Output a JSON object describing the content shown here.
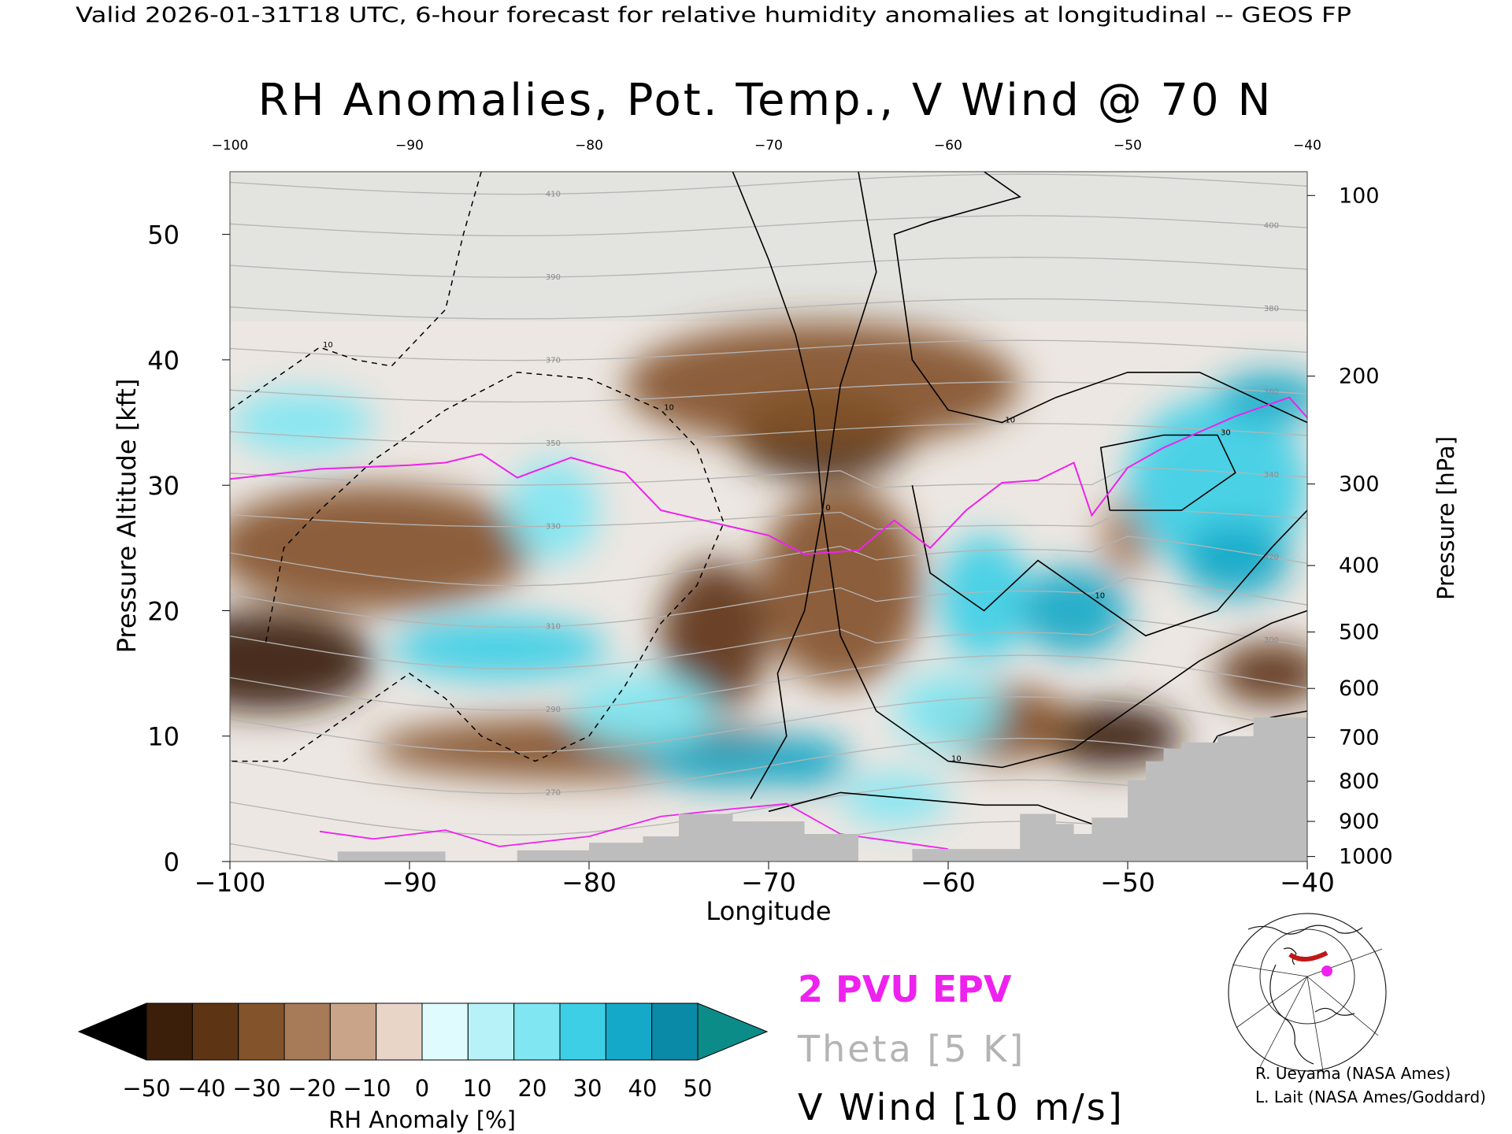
{
  "header": {
    "valid_line": "Valid 2026-01-31T18 UTC, 6-hour forecast for relative humidity anomalies at longitudinal -- GEOS FP",
    "title": "RH Anomalies, Pot. Temp., V Wind @ 70 N"
  },
  "credits": {
    "line1": "R. Ueyama (NASA Ames)",
    "line2": "L. Lait (NASA Ames/Goddard)"
  },
  "legend_text": {
    "epv": "2 PVU EPV",
    "theta": "Theta [5 K]",
    "vwind": "V Wind [10 m/s]"
  },
  "colors": {
    "epv": "#ee22ee",
    "theta": "#b4b4b4",
    "vwind": "#000000",
    "terrain": "#bdbdbd"
  },
  "chart_data": {
    "type": "heatmap",
    "title": "RH Anomalies, Pot. Temp., V Wind @ 70 N",
    "xlabel": "Longitude",
    "ylabel_left": "Pressure Altitude [kft]",
    "ylabel_right": "Pressure [hPa]",
    "xlim": [
      -100,
      -40
    ],
    "ylim": [
      0,
      55
    ],
    "x_ticks": [
      -100,
      -90,
      -80,
      -70,
      -60,
      -50,
      -40
    ],
    "x_tick_labels": [
      "−100",
      "−90",
      "−80",
      "−70",
      "−60",
      "−50",
      "−40"
    ],
    "top_tick_labels": [
      "−100",
      "−90",
      "−80",
      "−70",
      "−60",
      "−50",
      "−40"
    ],
    "y_ticks": [
      0,
      10,
      20,
      30,
      40,
      50
    ],
    "y_tick_labels": [
      "0",
      "10",
      "20",
      "30",
      "40",
      "50"
    ],
    "pressure_ticks": [
      {
        "hPa": "100",
        "kft": 53.1
      },
      {
        "hPa": "200",
        "kft": 38.7
      },
      {
        "hPa": "300",
        "kft": 30.1
      },
      {
        "hPa": "400",
        "kft": 23.6
      },
      {
        "hPa": "500",
        "kft": 18.3
      },
      {
        "hPa": "600",
        "kft": 13.8
      },
      {
        "hPa": "700",
        "kft": 9.9
      },
      {
        "hPa": "800",
        "kft": 6.4
      },
      {
        "hPa": "900",
        "kft": 3.2
      },
      {
        "hPa": "1000",
        "kft": 0.4
      }
    ],
    "colorbar": {
      "label": "RH Anomaly [%]",
      "ticks": [
        "−50",
        "−40",
        "−30",
        "−20",
        "−10",
        "0",
        "10",
        "20",
        "30",
        "40",
        "50"
      ],
      "colors": [
        "#3b1f0a",
        "#5e3514",
        "#83532b",
        "#a77a58",
        "#c9a489",
        "#e9d5c8",
        "#dffbfd",
        "#b6f2f8",
        "#7fe6f2",
        "#3ccfe6",
        "#14a9c8",
        "#0b8aa8"
      ],
      "under_color": "#000000",
      "over_color": "#0c8c88"
    },
    "rh_anomaly_blobs": [
      {
        "x": -67,
        "z": 34,
        "rx": 5,
        "rz": 3.5,
        "value": -45
      },
      {
        "x": -67,
        "z": 38,
        "rx": 11,
        "rz": 5,
        "value": -25
      },
      {
        "x": -66,
        "z": 22,
        "rx": 4.5,
        "rz": 8,
        "value": -30
      },
      {
        "x": -98,
        "z": 16,
        "rx": 6,
        "rz": 4,
        "value": -45
      },
      {
        "x": -92,
        "z": 25,
        "rx": 9,
        "rz": 5,
        "value": -25
      },
      {
        "x": -80,
        "z": 9,
        "rx": 12,
        "rz": 2.5,
        "value": -30
      },
      {
        "x": -73,
        "z": 18,
        "rx": 3,
        "rz": 6,
        "value": -35
      },
      {
        "x": -51,
        "z": 10,
        "rx": 4,
        "rz": 2.5,
        "value": -48
      },
      {
        "x": -57,
        "z": 11,
        "rx": 4,
        "rz": 3,
        "value": -30
      },
      {
        "x": -42,
        "z": 15,
        "rx": 3,
        "rz": 2.5,
        "value": -35
      },
      {
        "x": -50,
        "z": 26,
        "rx": 1.5,
        "rz": 3,
        "value": -20
      },
      {
        "x": -96,
        "z": 35,
        "rx": 4,
        "rz": 2.5,
        "value": 20
      },
      {
        "x": -85,
        "z": 17,
        "rx": 6,
        "rz": 2.5,
        "value": 30
      },
      {
        "x": -72,
        "z": 8,
        "rx": 5,
        "rz": 2,
        "value": 40
      },
      {
        "x": -68,
        "z": 8,
        "rx": 2.5,
        "rz": 2,
        "value": 45
      },
      {
        "x": -77,
        "z": 12,
        "rx": 4,
        "rz": 3,
        "value": 25
      },
      {
        "x": -58,
        "z": 21,
        "rx": 2.5,
        "rz": 5,
        "value": 35
      },
      {
        "x": -53,
        "z": 20,
        "rx": 3,
        "rz": 3.5,
        "value": 40
      },
      {
        "x": -60,
        "z": 12,
        "rx": 3,
        "rz": 3,
        "value": 25
      },
      {
        "x": -45,
        "z": 30,
        "rx": 5,
        "rz": 7,
        "value": 35
      },
      {
        "x": -44,
        "z": 24,
        "rx": 3,
        "rz": 3,
        "value": 45
      },
      {
        "x": -42,
        "z": 37,
        "rx": 3,
        "rz": 2,
        "value": 40
      },
      {
        "x": -63,
        "z": 5,
        "rx": 3,
        "rz": 2,
        "value": 25
      },
      {
        "x": -82,
        "z": 28,
        "rx": 2.5,
        "rz": 4,
        "value": 20
      }
    ],
    "epv_2pvu": [
      [
        -100,
        30.5
      ],
      [
        -95,
        31.3
      ],
      [
        -90,
        31.6
      ],
      [
        -88,
        31.8
      ],
      [
        -86,
        32.5
      ],
      [
        -84,
        30.6
      ],
      [
        -81,
        32.2
      ],
      [
        -78,
        31.0
      ],
      [
        -76,
        28.0
      ],
      [
        -73,
        27.0
      ],
      [
        -70,
        26.0
      ],
      [
        -68,
        24.5
      ],
      [
        -65,
        24.8
      ],
      [
        -63,
        27.2
      ],
      [
        -61,
        25.0
      ],
      [
        -59,
        28.0
      ],
      [
        -57,
        30.2
      ],
      [
        -55,
        30.4
      ],
      [
        -53,
        31.8
      ],
      [
        -52,
        27.6
      ],
      [
        -50,
        31.4
      ],
      [
        -48,
        33.0
      ],
      [
        -44,
        35.5
      ],
      [
        -41,
        37.0
      ],
      [
        -40,
        35.4
      ]
    ],
    "vwind_contours": [
      {
        "label": "0",
        "points": [
          [
            -72,
            55
          ],
          [
            -70,
            48
          ],
          [
            -68.5,
            42
          ],
          [
            -67.5,
            36
          ],
          [
            -67,
            28
          ],
          [
            -68,
            20
          ],
          [
            -69.5,
            15
          ],
          [
            -69,
            10
          ],
          [
            -71,
            5
          ]
        ]
      },
      {
        "label": "10",
        "points": [
          [
            -65,
            55
          ],
          [
            -64,
            47
          ],
          [
            -66,
            38
          ],
          [
            -67,
            28
          ],
          [
            -66,
            18
          ],
          [
            -64,
            12
          ],
          [
            -60,
            8
          ],
          [
            -57,
            7.5
          ],
          [
            -53,
            9
          ],
          [
            -50,
            12
          ],
          [
            -46,
            16
          ],
          [
            -42,
            19
          ],
          [
            -40,
            20
          ]
        ]
      },
      {
        "label": "10",
        "points": [
          [
            -58,
            55
          ],
          [
            -56,
            53
          ],
          [
            -61,
            51
          ],
          [
            -63,
            50
          ],
          [
            -62,
            40
          ],
          [
            -60,
            36
          ],
          [
            -57,
            35
          ],
          [
            -54,
            37
          ],
          [
            -50,
            39
          ],
          [
            -46,
            39
          ],
          [
            -43,
            37
          ],
          [
            -40,
            35
          ]
        ]
      },
      {
        "label": "30",
        "points": [
          [
            -51,
            28
          ],
          [
            -51.5,
            33
          ],
          [
            -48,
            34
          ],
          [
            -45,
            34
          ],
          [
            -44,
            31
          ],
          [
            -47,
            28
          ],
          [
            -51,
            28
          ]
        ]
      },
      {
        "label": "10",
        "points": [
          [
            -62,
            30
          ],
          [
            -61,
            23
          ],
          [
            -58,
            20
          ],
          [
            -55,
            24
          ],
          [
            -52,
            21
          ],
          [
            -49,
            18
          ],
          [
            -45,
            20
          ],
          [
            -42,
            25
          ],
          [
            -40,
            28
          ]
        ]
      },
      {
        "label": "0",
        "points": [
          [
            -70,
            4
          ],
          [
            -66,
            5.5
          ],
          [
            -62,
            5
          ],
          [
            -58,
            4.5
          ],
          [
            -55,
            4.5
          ],
          [
            -52,
            3
          ],
          [
            -48,
            3
          ],
          [
            -45,
            10
          ],
          [
            -42,
            11.5
          ],
          [
            -40,
            12
          ]
        ]
      }
    ],
    "vwind_dashed": [
      {
        "label": "10",
        "points": [
          [
            -98,
            17.5
          ],
          [
            -97,
            25
          ],
          [
            -95,
            28
          ],
          [
            -92,
            32
          ],
          [
            -88,
            36
          ],
          [
            -84,
            39
          ],
          [
            -80,
            38.5
          ],
          [
            -76,
            36
          ],
          [
            -74,
            33
          ],
          [
            -72.5,
            27
          ],
          [
            -74,
            22
          ],
          [
            -76,
            19
          ],
          [
            -78,
            14
          ],
          [
            -80,
            10
          ],
          [
            -83,
            8
          ],
          [
            -86,
            10
          ],
          [
            -88,
            13
          ],
          [
            -90,
            15
          ],
          [
            -95,
            10
          ],
          [
            -97,
            8
          ],
          [
            -100,
            8
          ]
        ]
      },
      {
        "label": "10",
        "points": [
          [
            -100,
            36
          ],
          [
            -97,
            39
          ],
          [
            -95,
            41
          ],
          [
            -93,
            40
          ],
          [
            -91,
            39.5
          ],
          [
            -88,
            44
          ],
          [
            -87,
            50
          ],
          [
            -86,
            55
          ]
        ]
      }
    ],
    "theta_levels": [
      250,
      260,
      270,
      280,
      290,
      300,
      310,
      320,
      330,
      340,
      350,
      360,
      370,
      380,
      390,
      400,
      410
    ],
    "terrain_profile": [
      [
        -100,
        0
      ],
      [
        -94,
        0
      ],
      [
        -94,
        0.8
      ],
      [
        -88,
        0.8
      ],
      [
        -88,
        0
      ],
      [
        -84,
        0
      ],
      [
        -84,
        0.9
      ],
      [
        -80,
        0.9
      ],
      [
        -80,
        1.5
      ],
      [
        -77,
        1.5
      ],
      [
        -77,
        2.0
      ],
      [
        -75,
        2.0
      ],
      [
        -75,
        3.8
      ],
      [
        -72,
        3.8
      ],
      [
        -72,
        3.2
      ],
      [
        -68,
        3.2
      ],
      [
        -68,
        2.2
      ],
      [
        -65,
        2.2
      ],
      [
        -65,
        0
      ],
      [
        -62,
        0
      ],
      [
        -62,
        1.0
      ],
      [
        -56,
        1.0
      ],
      [
        -56,
        3.8
      ],
      [
        -54,
        3.8
      ],
      [
        -54,
        3.0
      ],
      [
        -53,
        3.0
      ],
      [
        -53,
        2.2
      ],
      [
        -52,
        2.2
      ],
      [
        -52,
        3.5
      ],
      [
        -50,
        3.5
      ],
      [
        -50,
        6.5
      ],
      [
        -49,
        6.5
      ],
      [
        -49,
        8.0
      ],
      [
        -48,
        8.0
      ],
      [
        -48,
        9.0
      ],
      [
        -47,
        9.0
      ],
      [
        -47,
        9.5
      ],
      [
        -45,
        9.5
      ],
      [
        -45,
        10.0
      ],
      [
        -43,
        10.0
      ],
      [
        -43,
        11.5
      ],
      [
        -40,
        11.5
      ],
      [
        -40,
        0
      ]
    ],
    "map_marker": "magenta-dot"
  }
}
